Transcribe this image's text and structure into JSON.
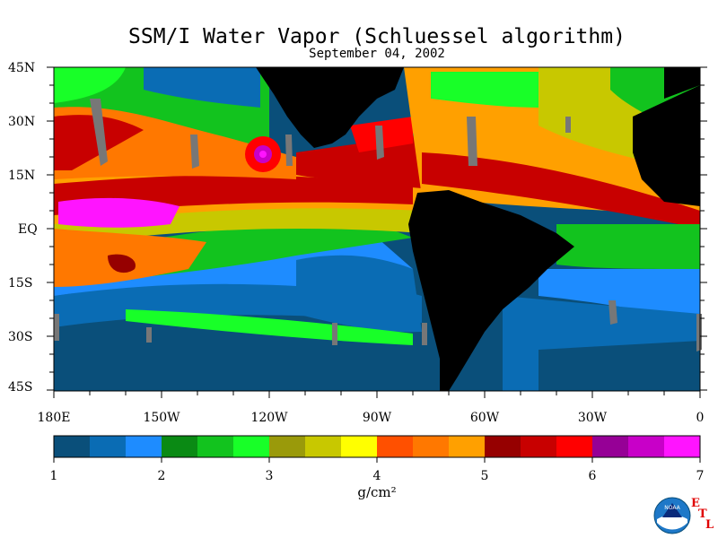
{
  "title": "SSM/I Water Vapor (Schluessel algorithm)",
  "date": "September 04, 2002",
  "lat_labels": [
    "45N",
    "30N",
    "15N",
    "EQ",
    "15S",
    "30S",
    "45S"
  ],
  "lon_labels": [
    "180E",
    "150W",
    "120W",
    "90W",
    "60W",
    "30W",
    "0"
  ],
  "colorbar": {
    "colors": [
      "#0a4f7a",
      "#0a6cb4",
      "#1e8cff",
      "#0a8a14",
      "#12c31e",
      "#18ff28",
      "#9a9a0a",
      "#c8c800",
      "#ffff00",
      "#ff5000",
      "#ff7800",
      "#ffa000",
      "#960000",
      "#c80000",
      "#ff0000",
      "#960096",
      "#c800c8",
      "#ff14ff"
    ],
    "tick_labels": [
      "1",
      "2",
      "3",
      "4",
      "5",
      "6",
      "7"
    ],
    "units": "g/cm²"
  },
  "logo": {
    "text": "NOAA",
    "letters": [
      "E",
      "T",
      "L"
    ]
  },
  "colors": {
    "land": "#000000",
    "background": "#ffffff"
  }
}
